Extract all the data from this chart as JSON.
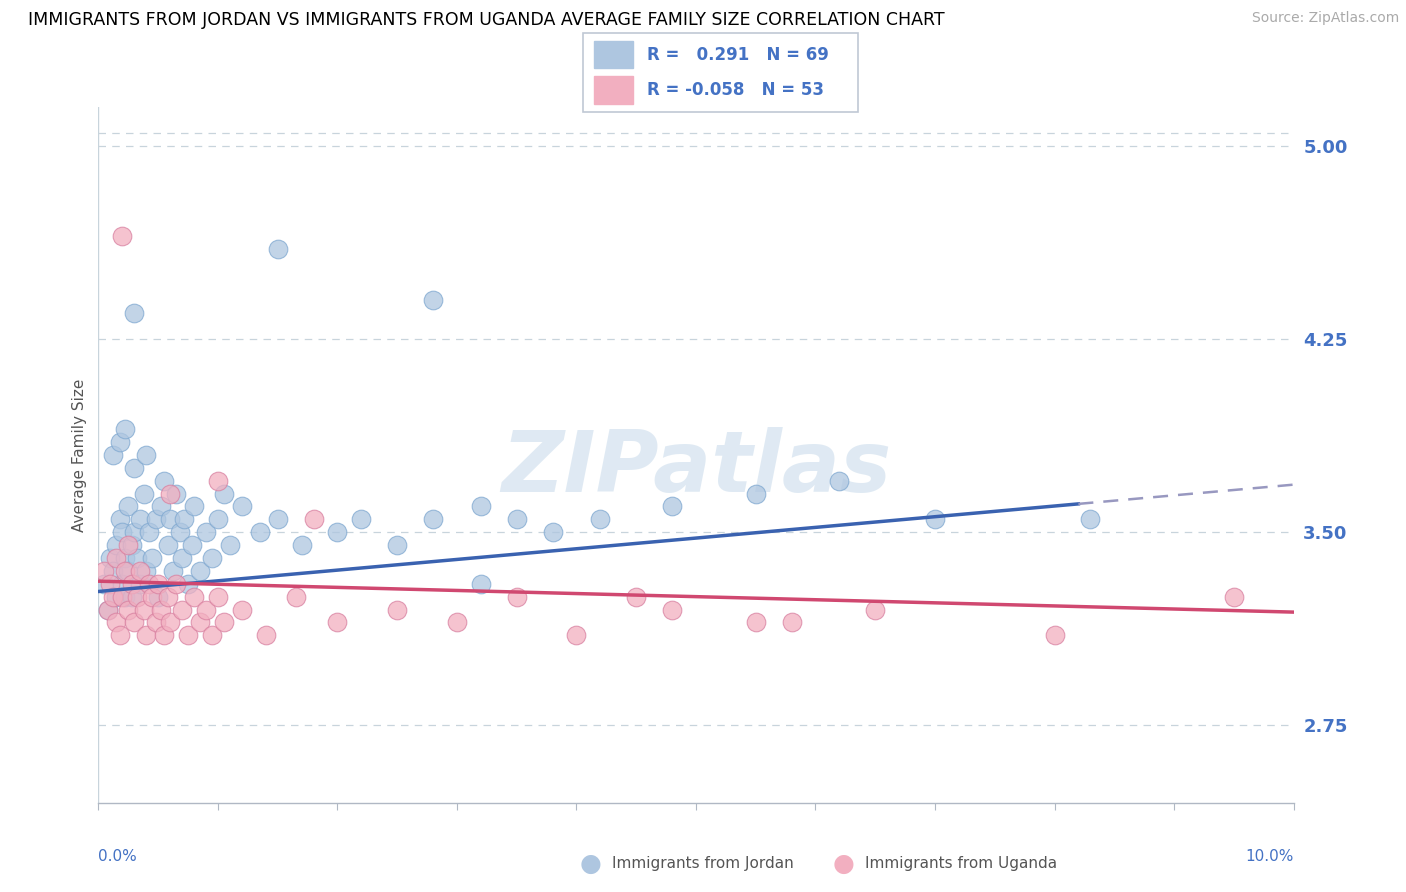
{
  "title": "IMMIGRANTS FROM JORDAN VS IMMIGRANTS FROM UGANDA AVERAGE FAMILY SIZE CORRELATION CHART",
  "source": "Source: ZipAtlas.com",
  "ylabel": "Average Family Size",
  "y_ticks": [
    2.75,
    3.5,
    4.25,
    5.0
  ],
  "x_min": 0.0,
  "x_max": 10.0,
  "y_min": 2.45,
  "y_max": 5.15,
  "jordan_color": "#aec6e0",
  "uganda_color": "#f2afc0",
  "jordan_line_color": "#3a62b0",
  "uganda_line_color": "#d04870",
  "dashed_color": "#9898c0",
  "grid_color": "#c8d4dc",
  "tick_color": "#4472c4",
  "label_color": "#555555",
  "jordan_points": [
    [
      0.05,
      3.3
    ],
    [
      0.08,
      3.2
    ],
    [
      0.1,
      3.4
    ],
    [
      0.12,
      3.35
    ],
    [
      0.15,
      3.25
    ],
    [
      0.15,
      3.45
    ],
    [
      0.18,
      3.55
    ],
    [
      0.2,
      3.3
    ],
    [
      0.2,
      3.5
    ],
    [
      0.22,
      3.25
    ],
    [
      0.22,
      3.4
    ],
    [
      0.25,
      3.35
    ],
    [
      0.25,
      3.6
    ],
    [
      0.28,
      3.45
    ],
    [
      0.28,
      3.25
    ],
    [
      0.3,
      3.5
    ],
    [
      0.3,
      3.75
    ],
    [
      0.32,
      3.4
    ],
    [
      0.35,
      3.55
    ],
    [
      0.35,
      3.3
    ],
    [
      0.38,
      3.65
    ],
    [
      0.4,
      3.35
    ],
    [
      0.4,
      3.8
    ],
    [
      0.42,
      3.5
    ],
    [
      0.45,
      3.4
    ],
    [
      0.48,
      3.55
    ],
    [
      0.5,
      3.25
    ],
    [
      0.52,
      3.6
    ],
    [
      0.55,
      3.7
    ],
    [
      0.58,
      3.45
    ],
    [
      0.6,
      3.55
    ],
    [
      0.62,
      3.35
    ],
    [
      0.65,
      3.65
    ],
    [
      0.68,
      3.5
    ],
    [
      0.7,
      3.4
    ],
    [
      0.72,
      3.55
    ],
    [
      0.75,
      3.3
    ],
    [
      0.78,
      3.45
    ],
    [
      0.8,
      3.6
    ],
    [
      0.85,
      3.35
    ],
    [
      0.9,
      3.5
    ],
    [
      0.95,
      3.4
    ],
    [
      1.0,
      3.55
    ],
    [
      1.05,
      3.65
    ],
    [
      1.1,
      3.45
    ],
    [
      1.2,
      3.6
    ],
    [
      1.35,
      3.5
    ],
    [
      1.5,
      3.55
    ],
    [
      1.7,
      3.45
    ],
    [
      2.0,
      3.5
    ],
    [
      2.2,
      3.55
    ],
    [
      2.5,
      3.45
    ],
    [
      2.8,
      3.55
    ],
    [
      3.2,
      3.6
    ],
    [
      3.5,
      3.55
    ],
    [
      3.8,
      3.5
    ],
    [
      4.2,
      3.55
    ],
    [
      4.8,
      3.6
    ],
    [
      5.5,
      3.65
    ],
    [
      6.2,
      3.7
    ],
    [
      7.0,
      3.55
    ],
    [
      8.3,
      3.55
    ],
    [
      0.3,
      4.35
    ],
    [
      2.8,
      4.4
    ],
    [
      1.5,
      4.6
    ],
    [
      3.2,
      3.3
    ],
    [
      0.12,
      3.8
    ],
    [
      0.18,
      3.85
    ],
    [
      0.22,
      3.9
    ]
  ],
  "uganda_points": [
    [
      0.05,
      3.35
    ],
    [
      0.08,
      3.2
    ],
    [
      0.1,
      3.3
    ],
    [
      0.12,
      3.25
    ],
    [
      0.15,
      3.15
    ],
    [
      0.15,
      3.4
    ],
    [
      0.18,
      3.1
    ],
    [
      0.2,
      3.25
    ],
    [
      0.22,
      3.35
    ],
    [
      0.25,
      3.2
    ],
    [
      0.25,
      3.45
    ],
    [
      0.28,
      3.3
    ],
    [
      0.3,
      3.15
    ],
    [
      0.32,
      3.25
    ],
    [
      0.35,
      3.35
    ],
    [
      0.38,
      3.2
    ],
    [
      0.4,
      3.1
    ],
    [
      0.42,
      3.3
    ],
    [
      0.45,
      3.25
    ],
    [
      0.48,
      3.15
    ],
    [
      0.5,
      3.3
    ],
    [
      0.52,
      3.2
    ],
    [
      0.55,
      3.1
    ],
    [
      0.58,
      3.25
    ],
    [
      0.6,
      3.15
    ],
    [
      0.65,
      3.3
    ],
    [
      0.7,
      3.2
    ],
    [
      0.75,
      3.1
    ],
    [
      0.8,
      3.25
    ],
    [
      0.85,
      3.15
    ],
    [
      0.9,
      3.2
    ],
    [
      0.95,
      3.1
    ],
    [
      1.0,
      3.25
    ],
    [
      1.05,
      3.15
    ],
    [
      1.2,
      3.2
    ],
    [
      1.4,
      3.1
    ],
    [
      1.65,
      3.25
    ],
    [
      2.0,
      3.15
    ],
    [
      2.5,
      3.2
    ],
    [
      3.0,
      3.15
    ],
    [
      3.5,
      3.25
    ],
    [
      4.0,
      3.1
    ],
    [
      4.8,
      3.2
    ],
    [
      5.5,
      3.15
    ],
    [
      6.5,
      3.2
    ],
    [
      0.2,
      4.65
    ],
    [
      0.6,
      3.65
    ],
    [
      1.0,
      3.7
    ],
    [
      1.8,
      3.55
    ],
    [
      4.5,
      3.25
    ],
    [
      5.8,
      3.15
    ],
    [
      8.0,
      3.1
    ],
    [
      9.5,
      3.25
    ]
  ]
}
